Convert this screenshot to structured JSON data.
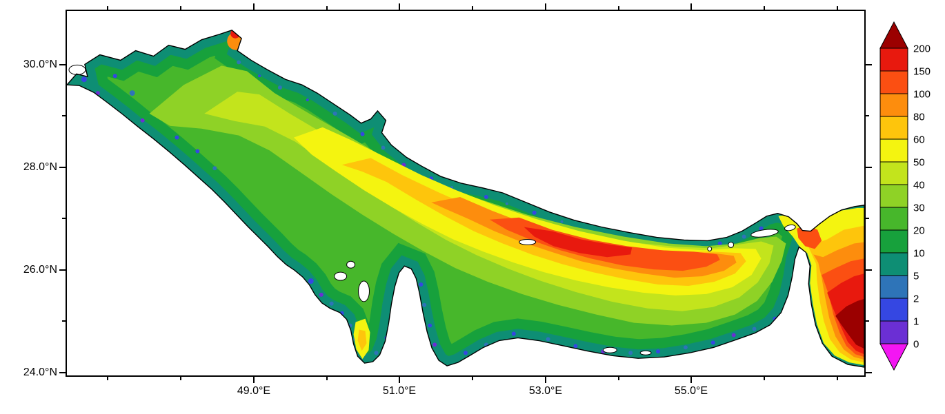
{
  "axes": {
    "x_tick_labels": [
      "49.0°E",
      "51.0°E",
      "53.0°E",
      "55.0°E"
    ],
    "y_tick_labels": [
      "30.0°N",
      "28.0°N",
      "26.0°N",
      "24.0°N"
    ]
  },
  "colorbar": {
    "tick_labels": [
      "200",
      "150",
      "100",
      "80",
      "60",
      "50",
      "40",
      "30",
      "20",
      "10",
      "5",
      "2",
      "1",
      "0"
    ],
    "colors_bottom_to_top": [
      "#f316f3",
      "#6b2fd4",
      "#3547e2",
      "#2e74b8",
      "#0e8e74",
      "#17a13c",
      "#47b72b",
      "#8fd226",
      "#c3e41c",
      "#f4f410",
      "#fec50c",
      "#fd8d0d",
      "#fb4f12",
      "#e8190e",
      "#9b0000"
    ]
  },
  "chart_data": {
    "type": "heatmap",
    "title": "",
    "xlabel": "",
    "ylabel": "",
    "x_tick_labels": [
      "49.0°E",
      "51.0°E",
      "53.0°E",
      "55.0°E"
    ],
    "y_tick_labels": [
      "30.0°N",
      "28.0°N",
      "26.0°N",
      "24.0°N"
    ],
    "colorbar_levels": [
      0,
      1,
      2,
      5,
      10,
      20,
      30,
      40,
      50,
      60,
      80,
      100,
      150,
      200
    ],
    "colorbar_colors_bottom_to_top": [
      "#f316f3",
      "#6b2fd4",
      "#3547e2",
      "#2e74b8",
      "#0e8e74",
      "#17a13c",
      "#47b72b",
      "#8fd226",
      "#c3e41c",
      "#f4f410",
      "#fec50c",
      "#fd8d0d",
      "#fb4f12",
      "#e8190e",
      "#9b0000"
    ],
    "legend_position": "right",
    "grid": false,
    "region": "Persian Gulf / Strait of Hormuz filled-contour field (land shown white)",
    "approx_features": [
      {
        "area": "coastal margins throughout the gulf",
        "value_range": "0-10"
      },
      {
        "area": "northwest basin interior",
        "value_range": "20-50"
      },
      {
        "area": "central axial channel toward Iranian side",
        "value_range": "60-150"
      },
      {
        "area": "bright band east of 52°E along channel",
        "value_range": "100-200"
      },
      {
        "area": "southeast corner beyond Strait of Hormuz (Gulf of Oman)",
        "value_range": "150-200+"
      },
      {
        "area": "shallow bays around Qatar, Bahrain and southern coast",
        "value_range": "0-5"
      }
    ]
  }
}
